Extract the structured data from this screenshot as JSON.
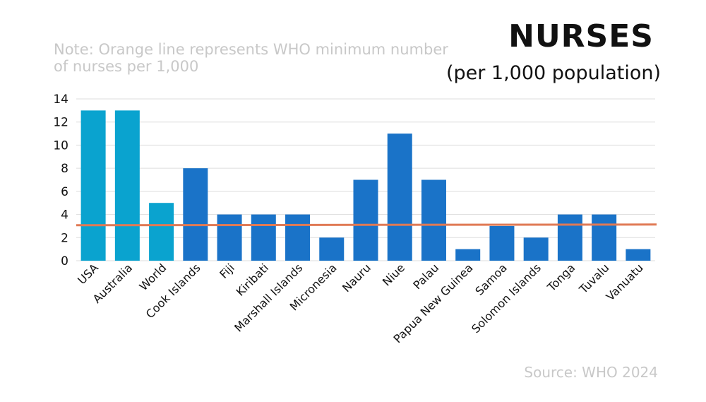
{
  "chart_data": {
    "type": "bar",
    "title": "NURSES",
    "subtitle": "(per 1,000 population)",
    "note": "Note: Orange line represents WHO minimum number of nurses per 1,000",
    "source": "Source: WHO 2024",
    "categories": [
      "USA",
      "Australia",
      "World",
      "Cook Islands",
      "Fiji",
      "Kiribati",
      "Marshall Islands",
      "Micronesia",
      "Nauru",
      "Niue",
      "Palau",
      "Papua New Guinea",
      "Samoa",
      "Solomon Islands",
      "Tonga",
      "Tuvalu",
      "Vanuatu"
    ],
    "values": [
      13,
      13,
      5,
      8,
      4,
      4,
      4,
      2,
      7,
      11,
      7,
      1,
      3,
      2,
      4,
      4,
      1
    ],
    "bar_colors": [
      "#0aa3cf",
      "#0aa3cf",
      "#0aa3cf",
      "#1a73c8",
      "#1a73c8",
      "#1a73c8",
      "#1a73c8",
      "#1a73c8",
      "#1a73c8",
      "#1a73c8",
      "#1a73c8",
      "#1a73c8",
      "#1a73c8",
      "#1a73c8",
      "#1a73c8",
      "#1a73c8",
      "#1a73c8"
    ],
    "reference_line": {
      "value": 3.1,
      "color": "#e07a55"
    },
    "ylim": [
      0,
      14
    ],
    "yticks": [
      0,
      2,
      4,
      6,
      8,
      10,
      12,
      14
    ],
    "grid": true
  }
}
